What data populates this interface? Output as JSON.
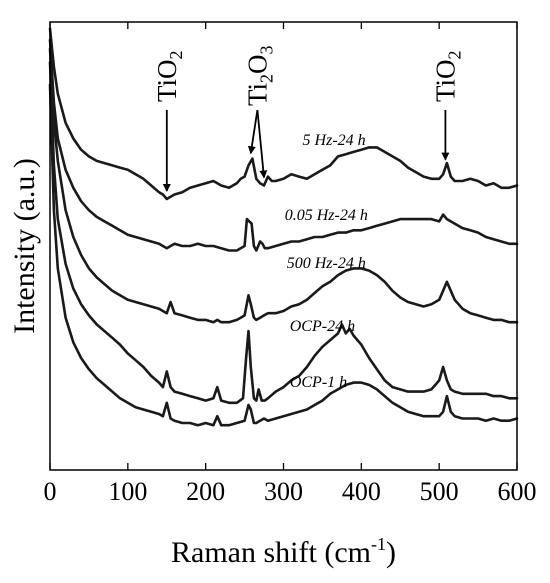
{
  "chart_data": {
    "type": "line",
    "xlabel": "Raman shift (cm",
    "xlabel_sup": "-1",
    "xlabel_close": ")",
    "ylabel": "Intensity (a.u.)",
    "xlim": [
      0,
      600
    ],
    "ylim": [
      0,
      10
    ],
    "xticks": [
      0,
      100,
      200,
      300,
      400,
      500,
      600
    ],
    "yticks_labeled": false,
    "grid": false,
    "legend": "none",
    "line_color": "#1a1a1a",
    "series": [
      {
        "name": "5 Hz-24 h",
        "label_x": 365,
        "x": [
          0,
          5,
          10,
          20,
          30,
          40,
          50,
          60,
          70,
          80,
          90,
          100,
          110,
          120,
          130,
          140,
          145,
          150,
          155,
          160,
          170,
          180,
          190,
          200,
          210,
          220,
          230,
          240,
          245,
          250,
          255,
          260,
          265,
          270,
          275,
          280,
          285,
          290,
          300,
          310,
          320,
          330,
          340,
          350,
          360,
          370,
          380,
          390,
          400,
          410,
          420,
          430,
          440,
          450,
          460,
          470,
          480,
          490,
          500,
          505,
          510,
          515,
          520,
          530,
          540,
          550,
          560,
          570,
          580,
          590,
          600
        ],
        "y": [
          9.85,
          9.0,
          8.4,
          7.75,
          7.4,
          7.15,
          7.0,
          6.9,
          6.85,
          6.8,
          6.75,
          6.7,
          6.6,
          6.5,
          6.35,
          6.2,
          6.15,
          6.05,
          6.1,
          6.15,
          6.2,
          6.3,
          6.35,
          6.4,
          6.45,
          6.35,
          6.3,
          6.4,
          6.5,
          6.55,
          6.8,
          6.95,
          6.5,
          6.4,
          6.35,
          6.55,
          6.45,
          6.45,
          6.5,
          6.6,
          6.55,
          6.5,
          6.6,
          6.7,
          6.8,
          7.0,
          7.05,
          7.1,
          7.15,
          7.2,
          7.2,
          7.1,
          7.0,
          6.9,
          6.75,
          6.65,
          6.55,
          6.5,
          6.5,
          6.6,
          6.85,
          6.55,
          6.45,
          6.45,
          6.5,
          6.45,
          6.35,
          6.4,
          6.3,
          6.3,
          6.35
        ]
      },
      {
        "name": "0.05 Hz-24 h",
        "label_x": 355,
        "x": [
          0,
          5,
          10,
          20,
          30,
          40,
          50,
          60,
          70,
          80,
          90,
          100,
          110,
          120,
          130,
          140,
          145,
          150,
          155,
          160,
          170,
          180,
          190,
          200,
          210,
          220,
          230,
          240,
          245,
          250,
          253,
          256,
          259,
          262,
          265,
          270,
          273,
          276,
          280,
          290,
          300,
          310,
          320,
          330,
          340,
          350,
          360,
          370,
          380,
          390,
          400,
          410,
          420,
          430,
          440,
          450,
          460,
          470,
          480,
          490,
          500,
          505,
          510,
          515,
          520,
          530,
          540,
          550,
          560,
          570,
          580,
          590,
          600
        ],
        "y": [
          9.6,
          8.2,
          7.4,
          6.7,
          6.3,
          6.0,
          5.8,
          5.65,
          5.55,
          5.45,
          5.35,
          5.25,
          5.2,
          5.15,
          5.1,
          5.05,
          5.0,
          4.95,
          5.0,
          5.05,
          5.0,
          5.0,
          5.05,
          5.0,
          5.0,
          4.95,
          4.9,
          4.9,
          4.95,
          5.0,
          5.6,
          5.55,
          5.5,
          5.0,
          4.9,
          5.1,
          5.05,
          4.95,
          4.95,
          5.0,
          5.05,
          5.1,
          5.1,
          5.15,
          5.2,
          5.2,
          5.25,
          5.3,
          5.3,
          5.35,
          5.35,
          5.4,
          5.45,
          5.5,
          5.55,
          5.6,
          5.6,
          5.6,
          5.6,
          5.6,
          5.55,
          5.7,
          5.6,
          5.55,
          5.5,
          5.4,
          5.35,
          5.3,
          5.2,
          5.15,
          5.1,
          5.05,
          5.05
        ]
      },
      {
        "name": "500 Hz-24 h",
        "label_x": 355,
        "x": [
          0,
          5,
          10,
          20,
          30,
          40,
          50,
          60,
          70,
          80,
          90,
          100,
          110,
          120,
          130,
          140,
          145,
          150,
          155,
          160,
          170,
          180,
          190,
          200,
          210,
          215,
          220,
          230,
          240,
          245,
          250,
          255,
          258,
          262,
          265,
          270,
          275,
          280,
          290,
          300,
          310,
          320,
          330,
          340,
          350,
          360,
          370,
          380,
          390,
          400,
          410,
          420,
          430,
          440,
          450,
          460,
          470,
          480,
          490,
          500,
          505,
          510,
          515,
          520,
          530,
          540,
          550,
          560,
          570,
          580,
          590,
          600
        ],
        "y": [
          9.4,
          7.8,
          6.9,
          5.8,
          5.2,
          4.8,
          4.5,
          4.3,
          4.15,
          4.0,
          3.9,
          3.8,
          3.75,
          3.7,
          3.65,
          3.6,
          3.55,
          3.5,
          3.75,
          3.5,
          3.45,
          3.4,
          3.35,
          3.35,
          3.3,
          3.35,
          3.3,
          3.3,
          3.35,
          3.4,
          3.45,
          3.9,
          3.7,
          3.4,
          3.35,
          3.4,
          3.45,
          3.5,
          3.5,
          3.55,
          3.65,
          3.7,
          3.8,
          3.95,
          4.1,
          4.2,
          4.35,
          4.45,
          4.5,
          4.5,
          4.45,
          4.35,
          4.2,
          4.0,
          3.85,
          3.75,
          3.7,
          3.65,
          3.7,
          3.8,
          4.0,
          4.2,
          4.0,
          3.8,
          3.6,
          3.5,
          3.45,
          3.4,
          3.35,
          3.35,
          3.3,
          3.3
        ]
      },
      {
        "name": "OCP-24 h",
        "label_x": 350,
        "x": [
          0,
          5,
          10,
          20,
          30,
          40,
          50,
          60,
          70,
          80,
          90,
          100,
          110,
          120,
          130,
          140,
          145,
          150,
          155,
          160,
          170,
          180,
          190,
          200,
          210,
          215,
          220,
          230,
          240,
          248,
          252,
          255,
          258,
          262,
          265,
          268,
          272,
          276,
          280,
          290,
          300,
          310,
          320,
          330,
          340,
          350,
          360,
          370,
          375,
          380,
          385,
          390,
          400,
          410,
          420,
          430,
          440,
          450,
          460,
          470,
          480,
          490,
          500,
          505,
          510,
          515,
          520,
          530,
          540,
          550,
          560,
          570,
          580,
          590,
          600
        ],
        "y": [
          9.1,
          6.8,
          5.6,
          4.6,
          4.05,
          3.7,
          3.45,
          3.25,
          3.1,
          2.95,
          2.8,
          2.6,
          2.45,
          2.3,
          2.1,
          1.95,
          1.85,
          2.2,
          1.85,
          1.75,
          1.7,
          1.65,
          1.6,
          1.55,
          1.6,
          1.85,
          1.55,
          1.5,
          1.5,
          1.6,
          2.5,
          3.1,
          2.3,
          1.6,
          1.55,
          1.8,
          1.55,
          1.55,
          1.6,
          1.75,
          1.85,
          2.0,
          2.1,
          2.3,
          2.55,
          2.75,
          2.9,
          3.05,
          3.25,
          3.05,
          3.15,
          3.0,
          2.8,
          2.5,
          2.25,
          2.0,
          1.85,
          1.8,
          1.75,
          1.75,
          1.75,
          1.8,
          2.0,
          2.3,
          2.0,
          1.8,
          1.75,
          1.7,
          1.7,
          1.7,
          1.7,
          1.65,
          1.65,
          1.6,
          1.6
        ]
      },
      {
        "name": "OCP-1 h",
        "label_x": 345,
        "x": [
          0,
          5,
          10,
          20,
          30,
          40,
          50,
          60,
          70,
          80,
          90,
          100,
          110,
          120,
          130,
          140,
          145,
          150,
          155,
          160,
          170,
          180,
          190,
          200,
          210,
          215,
          220,
          230,
          240,
          250,
          255,
          258,
          262,
          265,
          270,
          275,
          280,
          290,
          300,
          310,
          320,
          330,
          340,
          350,
          360,
          370,
          380,
          390,
          400,
          410,
          420,
          430,
          440,
          450,
          460,
          470,
          480,
          490,
          500,
          505,
          510,
          515,
          520,
          530,
          540,
          550,
          560,
          570,
          580,
          590,
          600
        ],
        "y": [
          8.6,
          5.8,
          4.5,
          3.4,
          2.85,
          2.5,
          2.25,
          2.05,
          1.9,
          1.75,
          1.6,
          1.5,
          1.4,
          1.35,
          1.3,
          1.25,
          1.2,
          1.5,
          1.15,
          1.1,
          1.05,
          1.05,
          1.0,
          1.05,
          1.0,
          1.2,
          1.0,
          1.0,
          1.05,
          1.1,
          1.45,
          1.35,
          1.05,
          1.05,
          1.1,
          1.15,
          1.1,
          1.15,
          1.2,
          1.25,
          1.3,
          1.35,
          1.45,
          1.55,
          1.7,
          1.8,
          1.9,
          1.95,
          1.95,
          1.9,
          1.8,
          1.65,
          1.5,
          1.4,
          1.3,
          1.25,
          1.2,
          1.2,
          1.2,
          1.3,
          1.65,
          1.3,
          1.2,
          1.15,
          1.15,
          1.15,
          1.1,
          1.15,
          1.1,
          1.1,
          1.15
        ]
      }
    ],
    "annotations": [
      {
        "base": "TiO",
        "sub": "2",
        "x": 150,
        "series_index": 0
      },
      {
        "base": "Ti",
        "sub1": "2",
        "mid": "O",
        "sub2": "3",
        "targets_x": [
          258,
          275
        ],
        "series_index": 0
      },
      {
        "base": "TiO",
        "sub": "2",
        "x": 508,
        "series_index": 0
      }
    ]
  }
}
